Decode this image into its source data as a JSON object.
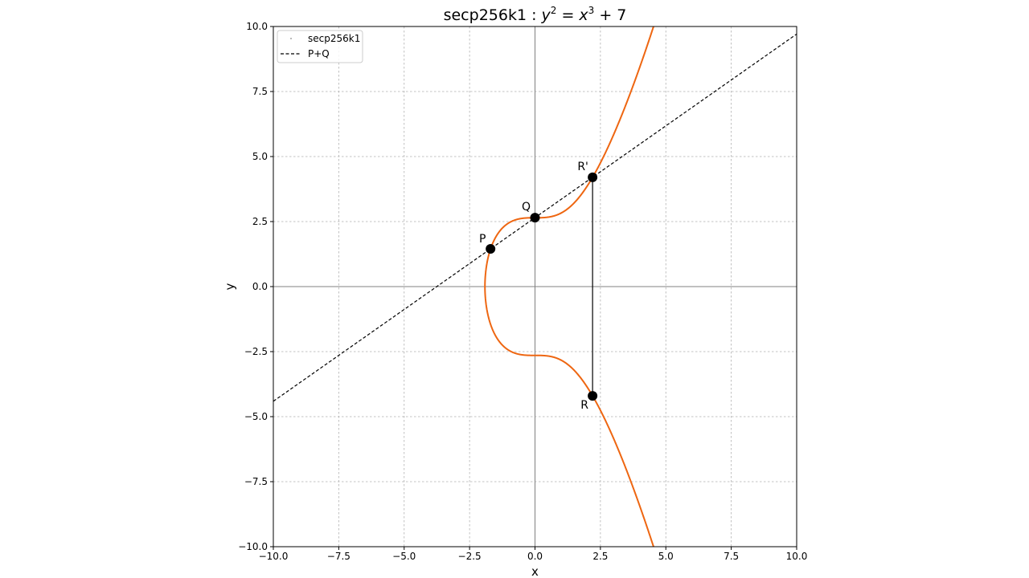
{
  "chart_data": {
    "type": "line",
    "title": "secp256k1 : y² = x³ + 7",
    "title_parts": {
      "name": "secp256k1 : ",
      "y": "y",
      "y_exp": "2",
      "eq": " = ",
      "x": "x",
      "x_exp": "3",
      "rest": " + 7"
    },
    "xlabel": "x",
    "ylabel": "y",
    "xlim": [
      -10,
      10
    ],
    "ylim": [
      -10,
      10
    ],
    "xticks": [
      -10,
      -7.5,
      -5,
      -2.5,
      0,
      2.5,
      5,
      7.5,
      10
    ],
    "yticks": [
      -10,
      -7.5,
      -5,
      -2.5,
      0,
      2.5,
      5,
      7.5,
      10
    ],
    "xtick_labels": [
      "−10.0",
      "−7.5",
      "−5.0",
      "−2.5",
      "0.0",
      "2.5",
      "5.0",
      "7.5",
      "10.0"
    ],
    "ytick_labels": [
      "−10.0",
      "−7.5",
      "−5.0",
      "−2.5",
      "0.0",
      "2.5",
      "5.0",
      "7.5",
      "10.0"
    ],
    "grid": true,
    "legend_position": "top-left",
    "series": [
      {
        "name": "secp256k1",
        "kind": "curve",
        "equation": "y^2 = x^3 + 7",
        "a": 0,
        "b": 7,
        "color": "#ee6611"
      },
      {
        "name": "P+Q",
        "kind": "secant",
        "from": [
          -1.7,
          1.45
        ],
        "to": [
          0,
          2.65
        ],
        "color": "#000000"
      }
    ],
    "points": [
      {
        "label": "P",
        "x": -1.7,
        "y": 1.45
      },
      {
        "label": "Q",
        "x": 0,
        "y": 2.65
      },
      {
        "label": "R'",
        "x": 2.2,
        "y": 4.2
      },
      {
        "label": "R",
        "x": 2.2,
        "y": -4.2
      }
    ],
    "vertical_segment": {
      "x": 2.2,
      "y_from": 4.2,
      "y_to": -4.2
    }
  }
}
